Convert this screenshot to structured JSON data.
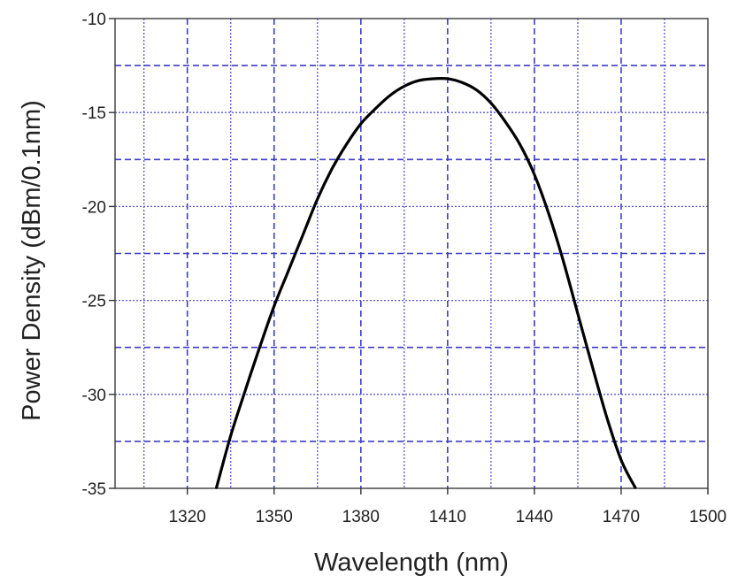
{
  "chart_data": {
    "type": "line",
    "xlabel": "Wavelength (nm)",
    "ylabel": "Power Density (dBm/0.1nm)",
    "xlim": [
      1295,
      1500
    ],
    "ylim": [
      -35,
      -10
    ],
    "x_ticks": [
      1320,
      1350,
      1380,
      1410,
      1440,
      1470,
      1500
    ],
    "y_ticks": [
      -10,
      -15,
      -20,
      -25,
      -30,
      -35
    ],
    "grid": true,
    "grid_color": "#3d3dc8",
    "line_color": "#000000",
    "series": [
      {
        "x": [
          1330,
          1335,
          1340,
          1345,
          1350,
          1355,
          1360,
          1365,
          1370,
          1375,
          1380,
          1385,
          1390,
          1395,
          1400,
          1405,
          1410,
          1415,
          1420,
          1425,
          1430,
          1435,
          1440,
          1445,
          1450,
          1455,
          1460,
          1465,
          1470,
          1475
        ],
        "y": [
          -35,
          -32.2,
          -29.8,
          -27.5,
          -25.3,
          -23.4,
          -21.5,
          -19.6,
          -18.0,
          -16.7,
          -15.6,
          -14.8,
          -14.1,
          -13.6,
          -13.3,
          -13.2,
          -13.2,
          -13.4,
          -13.8,
          -14.5,
          -15.5,
          -16.7,
          -18.3,
          -20.4,
          -22.9,
          -25.7,
          -28.5,
          -31.2,
          -33.5,
          -35
        ]
      }
    ]
  }
}
